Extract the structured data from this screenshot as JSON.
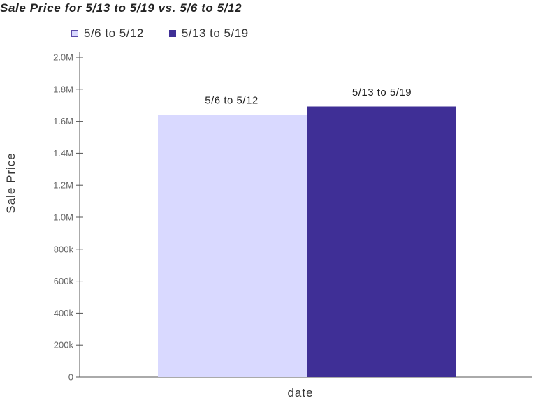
{
  "chart_data": {
    "type": "bar",
    "title": "Sale Price for 5/13 to 5/19 vs. 5/6 to 5/12",
    "xlabel": "date",
    "ylabel": "Sale Price",
    "ylim": [
      0,
      2000000
    ],
    "yticks": [
      0,
      200000,
      400000,
      600000,
      800000,
      1000000,
      1200000,
      1400000,
      1600000,
      1800000,
      2000000
    ],
    "ytick_labels": [
      "0",
      "200k",
      "400k",
      "600k",
      "800k",
      "1.0M",
      "1.2M",
      "1.4M",
      "1.6M",
      "1.8M",
      "2.0M"
    ],
    "grid": false,
    "legend_position": "top-left",
    "series": [
      {
        "name": "5/6 to 5/12",
        "values": [
          1640000
        ],
        "color": "#d9d9ff",
        "border": "#5a4aa8"
      },
      {
        "name": "5/13 to 5/19",
        "values": [
          1690000
        ],
        "color": "#3f2f96",
        "border": "#3f2f96"
      }
    ]
  }
}
